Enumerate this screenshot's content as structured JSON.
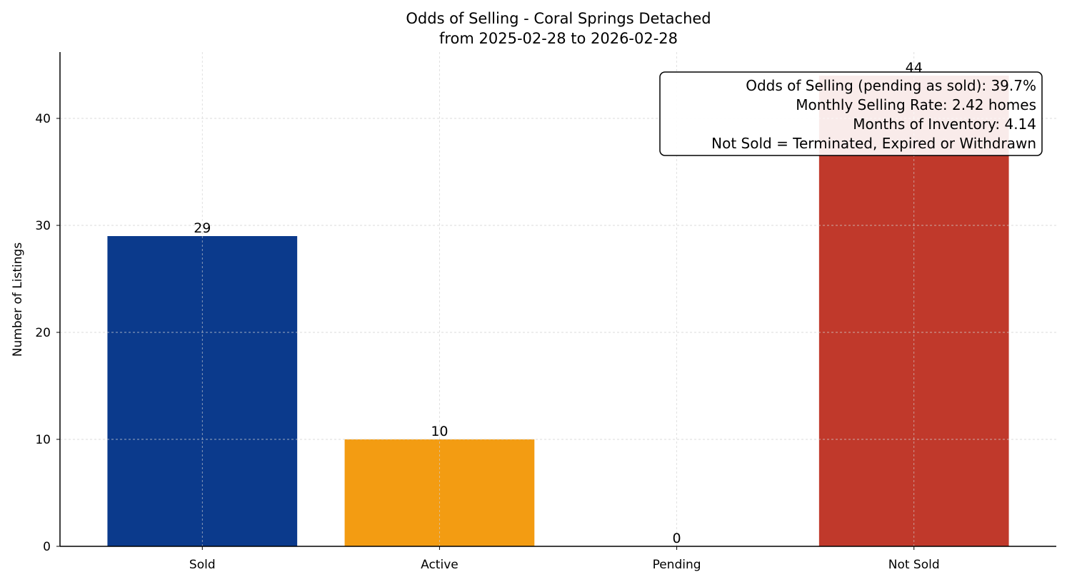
{
  "chart_data": {
    "type": "bar",
    "title": "Odds of Selling - Coral Springs Detached",
    "subtitle": "from 2025-02-28 to 2026-02-28",
    "xlabel": "",
    "ylabel": "Number of Listings",
    "categories": [
      "Sold",
      "Active",
      "Pending",
      "Not Sold"
    ],
    "values": [
      29,
      10,
      0,
      44
    ],
    "data_labels": [
      "29",
      "10",
      "0",
      "44"
    ],
    "colors": [
      "#0b3a8c",
      "#f39c12",
      "#e67e22",
      "#c0392b"
    ],
    "ylim": [
      0,
      46.2
    ],
    "yticks": [
      0,
      10,
      20,
      30,
      40
    ],
    "grid": true,
    "annotation": [
      "Odds of Selling (pending as sold): 39.7%",
      "Monthly Selling Rate: 2.42 homes",
      "Months of Inventory: 4.14",
      "Not Sold = Terminated, Expired or Withdrawn"
    ]
  }
}
